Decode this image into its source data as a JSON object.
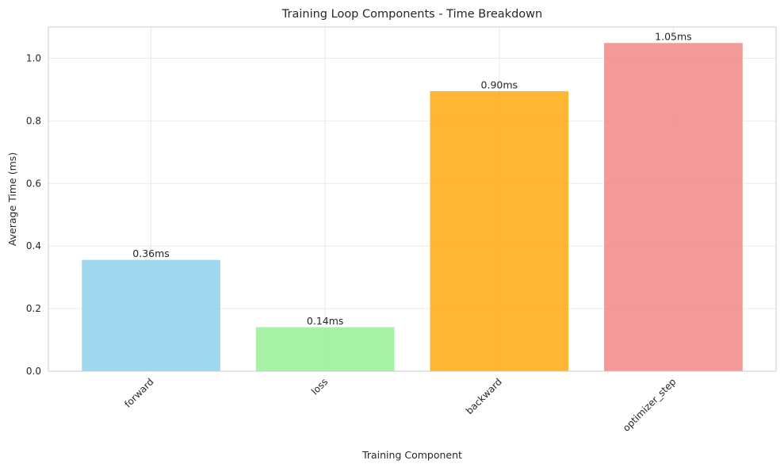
{
  "chart_data": {
    "type": "bar",
    "title": "Training Loop Components - Time Breakdown",
    "xlabel": "Training Component",
    "ylabel": "Average Time (ms)",
    "categories": [
      "forward",
      "loss",
      "backward",
      "optimizer_step"
    ],
    "values": [
      0.357,
      0.142,
      0.896,
      1.05
    ],
    "data_labels": [
      "0.36ms",
      "0.14ms",
      "0.90ms",
      "1.05ms"
    ],
    "colors": [
      "#87ceeb",
      "#90ee90",
      "#ffa500",
      "#f08080"
    ],
    "ylim": [
      0,
      1.1
    ],
    "yticks": [
      0.0,
      0.2,
      0.4,
      0.6,
      0.8,
      1.0
    ],
    "ytick_labels": [
      "0.0",
      "0.2",
      "0.4",
      "0.6",
      "0.8",
      "1.0"
    ],
    "grid": true,
    "xtick_rotation": 45
  }
}
